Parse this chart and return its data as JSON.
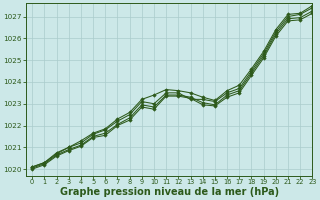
{
  "bg_color": "#cce8e8",
  "grid_color": "#aacccc",
  "line_color": "#2d5a1b",
  "marker_color": "#2d5a1b",
  "xlabel": "Graphe pression niveau de la mer (hPa)",
  "xlabel_fontsize": 7.0,
  "ylim": [
    1019.7,
    1027.6
  ],
  "xlim": [
    -0.5,
    23.0
  ],
  "yticks": [
    1020,
    1021,
    1022,
    1023,
    1024,
    1025,
    1026,
    1027
  ],
  "xticks": [
    0,
    1,
    2,
    3,
    4,
    5,
    6,
    7,
    8,
    9,
    10,
    11,
    12,
    13,
    14,
    15,
    16,
    17,
    18,
    19,
    20,
    21,
    22,
    23
  ],
  "series": [
    [
      1020.1,
      1020.3,
      1020.7,
      1021.0,
      1021.2,
      1021.6,
      1021.8,
      1022.2,
      1022.5,
      1023.1,
      1023.0,
      1023.5,
      1023.5,
      1023.2,
      1023.2,
      1023.1,
      1023.5,
      1023.7,
      1024.5,
      1025.3,
      1026.3,
      1027.0,
      1027.1,
      1027.4
    ],
    [
      1020.1,
      1020.3,
      1020.75,
      1021.0,
      1021.3,
      1021.65,
      1021.85,
      1022.3,
      1022.6,
      1023.2,
      1023.4,
      1023.65,
      1023.6,
      1023.5,
      1023.3,
      1023.15,
      1023.6,
      1023.85,
      1024.6,
      1025.4,
      1026.4,
      1027.1,
      1027.15,
      1027.5
    ],
    [
      1020.05,
      1020.25,
      1020.65,
      1020.9,
      1021.1,
      1021.5,
      1021.65,
      1022.05,
      1022.35,
      1022.95,
      1022.85,
      1023.4,
      1023.4,
      1023.3,
      1023.05,
      1022.95,
      1023.4,
      1023.6,
      1024.4,
      1025.2,
      1026.2,
      1026.9,
      1026.95,
      1027.25
    ],
    [
      1020.0,
      1020.2,
      1020.6,
      1020.85,
      1021.05,
      1021.45,
      1021.55,
      1022.0,
      1022.25,
      1022.85,
      1022.75,
      1023.35,
      1023.35,
      1023.25,
      1022.95,
      1022.9,
      1023.3,
      1023.5,
      1024.3,
      1025.1,
      1026.1,
      1026.8,
      1026.85,
      1027.15
    ]
  ]
}
